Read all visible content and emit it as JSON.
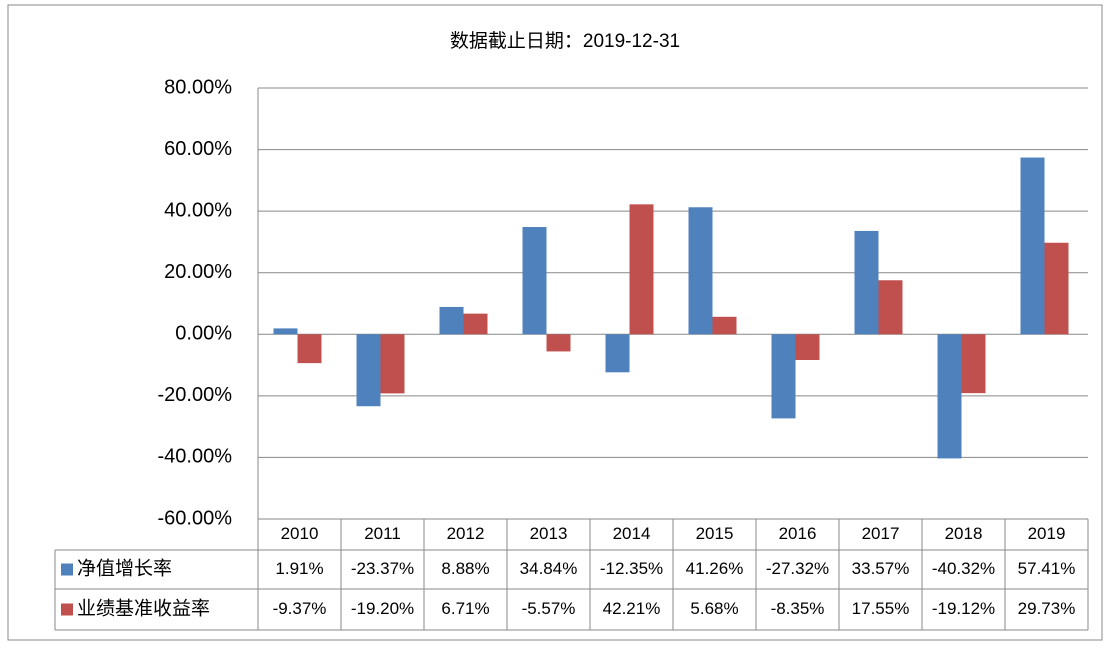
{
  "chart_data": {
    "type": "bar",
    "title": "数据截止日期：2019-12-31",
    "categories": [
      "2010",
      "2011",
      "2012",
      "2013",
      "2014",
      "2015",
      "2016",
      "2017",
      "2018",
      "2019"
    ],
    "series": [
      {
        "name": "净值增长率",
        "color": "#4f81bd",
        "values": [
          1.91,
          -23.37,
          8.88,
          34.84,
          -12.35,
          41.26,
          -27.32,
          33.57,
          -40.32,
          57.41
        ],
        "value_labels": [
          "1.91%",
          "-23.37%",
          "8.88%",
          "34.84%",
          "-12.35%",
          "41.26%",
          "-27.32%",
          "33.57%",
          "-40.32%",
          "57.41%"
        ]
      },
      {
        "name": "业绩基准收益率",
        "color": "#c0504d",
        "values": [
          -9.37,
          -19.2,
          6.71,
          -5.57,
          42.21,
          5.68,
          -8.35,
          17.55,
          -19.12,
          29.73
        ],
        "value_labels": [
          "-9.37%",
          "-19.20%",
          "6.71%",
          "-5.57%",
          "42.21%",
          "5.68%",
          "-8.35%",
          "17.55%",
          "-19.12%",
          "29.73%"
        ]
      }
    ],
    "ylim": [
      -60,
      80
    ],
    "yticks": [
      {
        "value": -60,
        "label": "-60.00%"
      },
      {
        "value": -40,
        "label": "-40.00%"
      },
      {
        "value": -20,
        "label": "-20.00%"
      },
      {
        "value": 0,
        "label": "0.00%"
      },
      {
        "value": 20,
        "label": "20.00%"
      },
      {
        "value": 40,
        "label": "40.00%"
      },
      {
        "value": 60,
        "label": "60.00%"
      },
      {
        "value": 80,
        "label": "80.00%"
      }
    ],
    "grid": true
  }
}
